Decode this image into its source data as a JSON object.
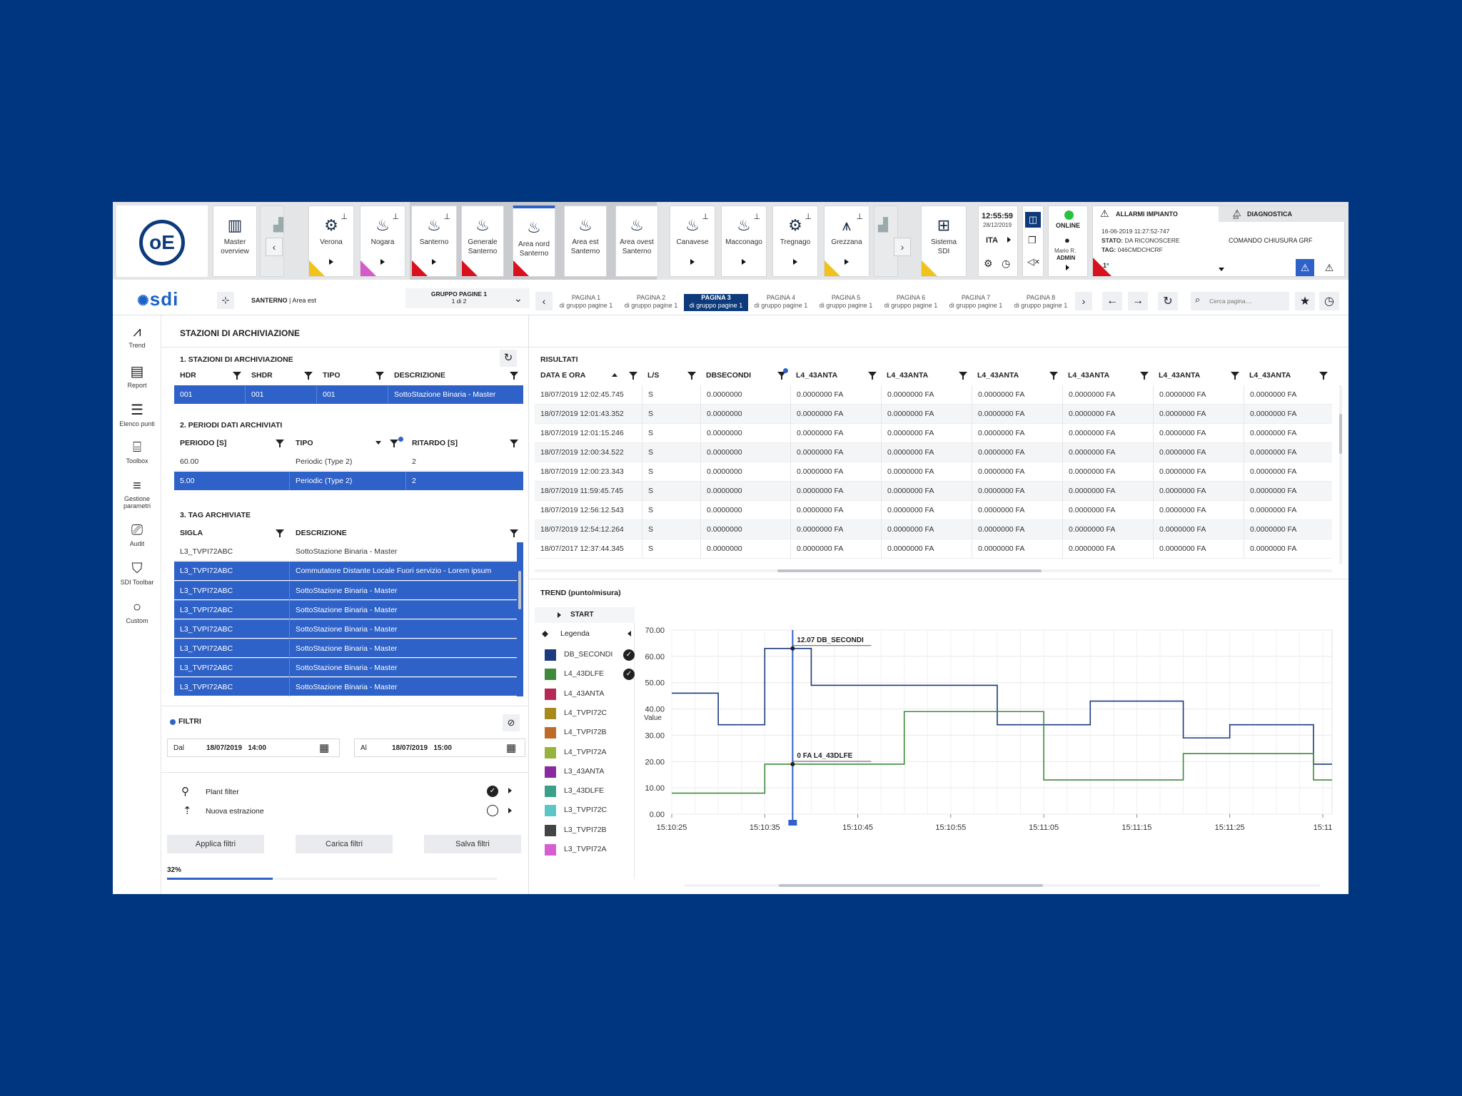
{
  "topbar": {
    "tiles": [
      {
        "label": "Master\noverview"
      },
      {
        "label": "Verona"
      },
      {
        "label": "Nogara"
      },
      {
        "label": "Santerno"
      },
      {
        "label": "Generale\nSanterno"
      },
      {
        "label": "Area nord\nSanterno"
      },
      {
        "label": "Area est\nSanterno"
      },
      {
        "label": "Area ovest\nSanterno"
      },
      {
        "label": "Canavese"
      },
      {
        "label": "Macconago"
      },
      {
        "label": "Tregnago"
      },
      {
        "label": "Grezzana"
      },
      {
        "label": "Sistema\nSDI"
      }
    ],
    "clock": {
      "time": "12:55:59",
      "date": "28/12/2019",
      "lang": "ITA"
    },
    "status": {
      "online": "ONLINE",
      "user": "Mario R.",
      "role": "ADMIN"
    },
    "alarms": {
      "tab_label": "ALLARMI IMPIANTO",
      "diag_label": "DIAGNOSTICA",
      "sdi_small": "SDI",
      "timestamp": "16-06-2019  11:27:52-747",
      "stato_label": "STATO:",
      "stato_value": "DA RICONOSCERE",
      "tag_label": "TAG:",
      "tag_value": "046CMDCHCRF",
      "command": "COMANDO CHIUSURA GRF",
      "level": "1°"
    }
  },
  "subbar": {
    "logo": "sdi",
    "breadcrumb_plant": "SANTERNO",
    "breadcrumb_sep": "|",
    "breadcrumb_area": "Area est",
    "group_title": "GRUPPO PAGINE 1",
    "group_sub": "1 di 2",
    "pages": [
      {
        "t": "PAGINA 1",
        "s": "di gruppo pagine 1"
      },
      {
        "t": "PAGINA 2",
        "s": "di gruppo pagine 1"
      },
      {
        "t": "PAGINA 3",
        "s": "di gruppo pagine 1"
      },
      {
        "t": "PAGINA 4",
        "s": "di gruppo pagine 1"
      },
      {
        "t": "PAGINA 5",
        "s": "di gruppo pagine 1"
      },
      {
        "t": "PAGINA 6",
        "s": "di gruppo pagine 1"
      },
      {
        "t": "PAGINA 7",
        "s": "di gruppo pagine 1"
      },
      {
        "t": "PAGINA 8",
        "s": "di gruppo pagine 1"
      }
    ],
    "search_placeholder": "Cerca pagina...."
  },
  "sidebar": {
    "items": [
      {
        "label": "Trend"
      },
      {
        "label": "Report"
      },
      {
        "label": "Elenco punti"
      },
      {
        "label": "Toolbox"
      },
      {
        "label": "Gestione\nparametri"
      },
      {
        "label": "Audit"
      },
      {
        "label": "SDI Toolbar"
      },
      {
        "label": "Custom"
      }
    ]
  },
  "left": {
    "title": "STAZIONI DI ARCHIVIAZIONE",
    "s1": {
      "title": "1. STAZIONI DI ARCHIVIAZIONE",
      "headers": [
        "HDR",
        "SHDR",
        "TIPO",
        "DESCRIZIONE"
      ],
      "rows": [
        [
          "001",
          "001",
          "001",
          "SottoStazione Binaria - Master"
        ]
      ]
    },
    "s2": {
      "title": "2. PERIODI DATI ARCHIVIATI",
      "headers": [
        "PERIODO [S]",
        "TIPO",
        "RITARDO [S]"
      ],
      "rows": [
        [
          "60.00",
          "Periodic (Type 2)",
          "2"
        ],
        [
          "5.00",
          "Periodic (Type 2)",
          "2"
        ]
      ]
    },
    "s3": {
      "title": "3. TAG ARCHIVIATE",
      "headers": [
        "SIGLA",
        "DESCRIZIONE"
      ],
      "rows": [
        [
          "L3_TVPI72ABC",
          "SottoStazione Binaria - Master"
        ],
        [
          "L3_TVPI72ABC",
          "Commutatore Distante Locale Fuori servizio - Lorem ipsum"
        ],
        [
          "L3_TVPI72ABC",
          "SottoStazione Binaria - Master"
        ],
        [
          "L3_TVPI72ABC",
          "SottoStazione Binaria - Master"
        ],
        [
          "L3_TVPI72ABC",
          "SottoStazione Binaria - Master"
        ],
        [
          "L3_TVPI72ABC",
          "SottoStazione Binaria - Master"
        ],
        [
          "L3_TVPI72ABC",
          "SottoStazione Binaria - Master"
        ],
        [
          "L3_TVPI72ABC",
          "SottoStazione Binaria - Master"
        ]
      ]
    },
    "filters": {
      "title": "FILTRI",
      "from_label": "Dal",
      "from_value": "18/07/2019   14:00",
      "to_label": "Al",
      "to_value": "18/07/2019   15:00",
      "plant_filter": "Plant filter",
      "new_extraction": "Nuova estrazione",
      "apply": "Applica filtri",
      "load": "Carica filtri",
      "save": "Salva filtri",
      "progress_label": "32%",
      "progress": 0.32
    }
  },
  "results": {
    "title": "RISULTATI",
    "headers": [
      "DATA E ORA",
      "L/S",
      "DBSECONDI",
      "L4_43ANTA",
      "L4_43ANTA",
      "L4_43ANTA",
      "L4_43ANTA",
      "L4_43ANTA",
      "L4_43ANTA"
    ],
    "rows": [
      [
        "18/07/2019  12:02:45.745",
        "S",
        "0.0000000",
        "0.0000000 FA",
        "0.0000000 FA",
        "0.0000000 FA",
        "0.0000000 FA",
        "0.0000000 FA",
        "0.0000000 FA"
      ],
      [
        "18/07/2019  12:01:43.352",
        "S",
        "0.0000000",
        "0.0000000 FA",
        "0.0000000 FA",
        "0.0000000 FA",
        "0.0000000 FA",
        "0.0000000 FA",
        "0.0000000 FA"
      ],
      [
        "18/07/2019  12:01:15.246",
        "S",
        "0.0000000",
        "0.0000000 FA",
        "0.0000000 FA",
        "0.0000000 FA",
        "0.0000000 FA",
        "0.0000000 FA",
        "0.0000000 FA"
      ],
      [
        "18/07/2019  12:00:34.522",
        "S",
        "0.0000000",
        "0.0000000 FA",
        "0.0000000 FA",
        "0.0000000 FA",
        "0.0000000 FA",
        "0.0000000 FA",
        "0.0000000 FA"
      ],
      [
        "18/07/2019  12:00:23.343",
        "S",
        "0.0000000",
        "0.0000000 FA",
        "0.0000000 FA",
        "0.0000000 FA",
        "0.0000000 FA",
        "0.0000000 FA",
        "0.0000000 FA"
      ],
      [
        "18/07/2019  11:59:45.745",
        "S",
        "0.0000000",
        "0.0000000 FA",
        "0.0000000 FA",
        "0.0000000 FA",
        "0.0000000 FA",
        "0.0000000 FA",
        "0.0000000 FA"
      ],
      [
        "18/07/2019  12:56:12.543",
        "S",
        "0.0000000",
        "0.0000000 FA",
        "0.0000000 FA",
        "0.0000000 FA",
        "0.0000000 FA",
        "0.0000000 FA",
        "0.0000000 FA"
      ],
      [
        "18/07/2019  12:54:12.264",
        "S",
        "0.0000000",
        "0.0000000 FA",
        "0.0000000 FA",
        "0.0000000 FA",
        "0.0000000 FA",
        "0.0000000 FA",
        "0.0000000 FA"
      ],
      [
        "18/07/2017  12:37:44.345",
        "S",
        "0.0000000",
        "0.0000000 FA",
        "0.0000000 FA",
        "0.0000000 FA",
        "0.0000000 FA",
        "0.0000000 FA",
        "0.0000000 FA"
      ]
    ]
  },
  "trend": {
    "title": "TREND (punto/misura)",
    "start": "START",
    "legend_label": "Legenda",
    "legend": [
      {
        "name": "DB_SECONDI",
        "color": "#1c3a7e",
        "checked": true
      },
      {
        "name": "L4_43DLFE",
        "color": "#3e8a3c",
        "checked": true
      },
      {
        "name": "L4_43ANTA",
        "color": "#b42a55",
        "checked": false
      },
      {
        "name": "L4_TVPI72C",
        "color": "#a88a1c",
        "checked": false
      },
      {
        "name": "L4_TVPI72B",
        "color": "#c06a2a",
        "checked": false
      },
      {
        "name": "L4_TVPI72A",
        "color": "#98b23e",
        "checked": false
      },
      {
        "name": "L3_43ANTA",
        "color": "#8a2aa0",
        "checked": false
      },
      {
        "name": "L3_43DLFE",
        "color": "#3aa088",
        "checked": false
      },
      {
        "name": "L3_TVPI72C",
        "color": "#5cc6c6",
        "checked": false
      },
      {
        "name": "L3_TVPI72B",
        "color": "#444444",
        "checked": false
      },
      {
        "name": "L3_TVPI72A",
        "color": "#d65ed0",
        "checked": false
      }
    ]
  },
  "chart_data": {
    "type": "line",
    "ylabel": "Value",
    "ylim": [
      0,
      70
    ],
    "yticks": [
      "0.00",
      "10.00",
      "20.00",
      "30.00",
      "40.00",
      "50.00",
      "60.00",
      "70.00"
    ],
    "xticks": [
      "15:10:25",
      "15:10:35",
      "15:10:45",
      "15:10:55",
      "15:11:05",
      "15:11:15",
      "15:11:25",
      "15:11"
    ],
    "xlim": [
      0,
      71
    ],
    "series": [
      {
        "name": "DB_SECONDI",
        "color": "#1c3a7e",
        "step": true,
        "x": [
          0,
          5,
          10,
          15,
          30,
          35,
          45,
          55,
          60,
          69,
          71
        ],
        "y": [
          46,
          34,
          63,
          49,
          49,
          34,
          43,
          29,
          34,
          19,
          19
        ]
      },
      {
        "name": "L4_43DLFE",
        "color": "#3e8a3c",
        "step": true,
        "x": [
          0,
          10,
          25,
          40,
          55,
          69,
          71
        ],
        "y": [
          8,
          19,
          39,
          13,
          23,
          13,
          13
        ]
      }
    ],
    "cursor_x": 13,
    "annotations": [
      "12.07 DB_SECONDI",
      "0 FA L4_43DLFE"
    ]
  }
}
